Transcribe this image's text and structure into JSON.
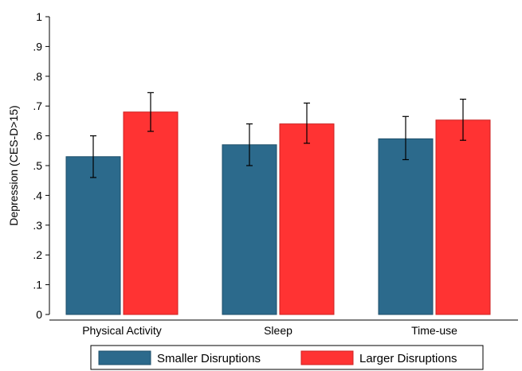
{
  "chart_data": {
    "type": "bar",
    "title": "",
    "xlabel": "",
    "ylabel": "Depression (CES-D>15)",
    "ylim": [
      0,
      1
    ],
    "yticks": [
      "0",
      ".1",
      ".2",
      ".3",
      ".4",
      ".5",
      ".6",
      ".7",
      ".8",
      ".9",
      "1"
    ],
    "categories": [
      "Physical Activity",
      "Sleep",
      "Time-use"
    ],
    "series": [
      {
        "name": "Smaller Disruptions",
        "color": "#2c6a8c",
        "values": [
          0.53,
          0.57,
          0.59
        ],
        "ci_low": [
          0.46,
          0.5,
          0.52
        ],
        "ci_high": [
          0.6,
          0.64,
          0.665
        ]
      },
      {
        "name": "Larger Disruptions",
        "color": "#ff3333",
        "values": [
          0.68,
          0.64,
          0.653
        ],
        "ci_low": [
          0.615,
          0.575,
          0.585
        ],
        "ci_high": [
          0.745,
          0.71,
          0.723
        ]
      }
    ],
    "grid": false,
    "legend_position": "bottom",
    "error_bars": true
  }
}
